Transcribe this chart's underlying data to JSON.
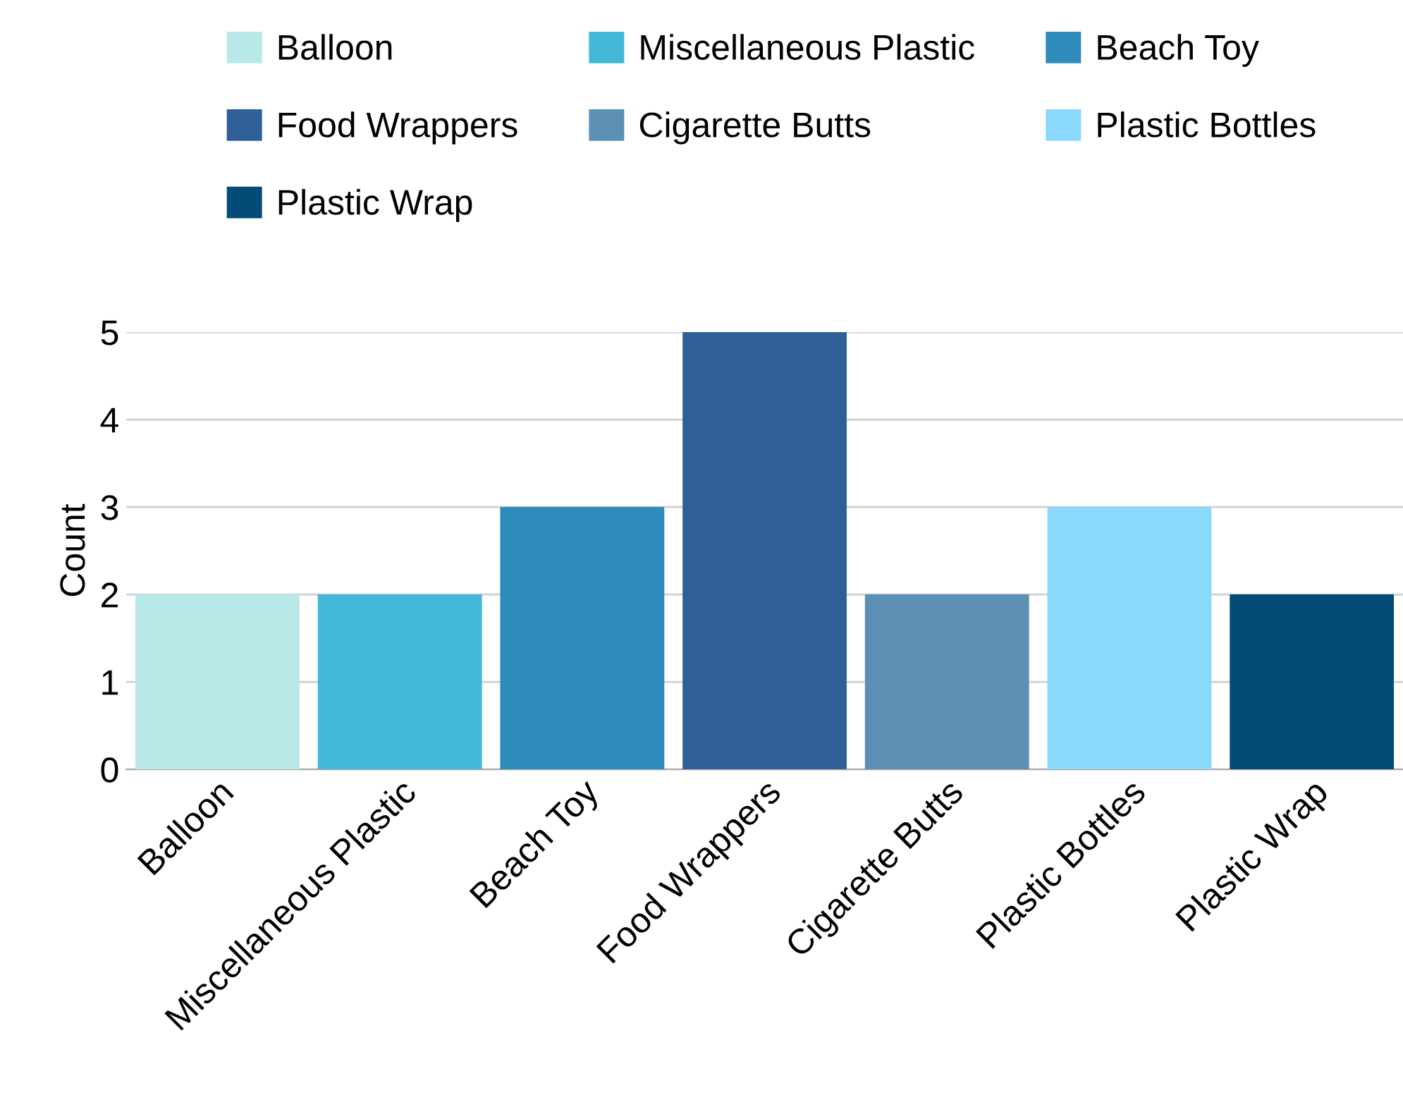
{
  "chart_data": {
    "type": "bar",
    "ylabel": "Count",
    "categories": [
      "Balloon",
      "Miscellaneous Plastic",
      "Beach Toy",
      "Food Wrappers",
      "Cigarette Butts",
      "Plastic Bottles",
      "Plastic Wrap"
    ],
    "series": [
      {
        "name": "Balloon",
        "color": "#b8e8e8",
        "values": [
          2,
          null,
          null,
          null,
          null,
          null,
          null
        ]
      },
      {
        "name": "Miscellaneous Plastic",
        "color": "#42b8d6",
        "values": [
          null,
          2,
          null,
          null,
          null,
          null,
          null
        ]
      },
      {
        "name": "Beach Toy",
        "color": "#2e8bbb",
        "values": [
          null,
          null,
          3,
          null,
          null,
          null,
          null
        ]
      },
      {
        "name": "Food Wrappers",
        "color": "#2f6098",
        "values": [
          null,
          null,
          null,
          5,
          null,
          null,
          null
        ]
      },
      {
        "name": "Cigarette Butts",
        "color": "#5b8fb3",
        "values": [
          null,
          null,
          null,
          null,
          2,
          null,
          null
        ]
      },
      {
        "name": "Plastic Bottles",
        "color": "#8ad8fc",
        "values": [
          null,
          null,
          null,
          null,
          null,
          3,
          null
        ]
      },
      {
        "name": "Plastic Wrap",
        "color": "#034c78",
        "values": [
          null,
          null,
          null,
          null,
          null,
          null,
          2
        ]
      }
    ],
    "ylim": [
      0,
      5
    ],
    "yticks": [
      0,
      1,
      2,
      3,
      4,
      5
    ],
    "grid": "y",
    "legend": "top"
  }
}
